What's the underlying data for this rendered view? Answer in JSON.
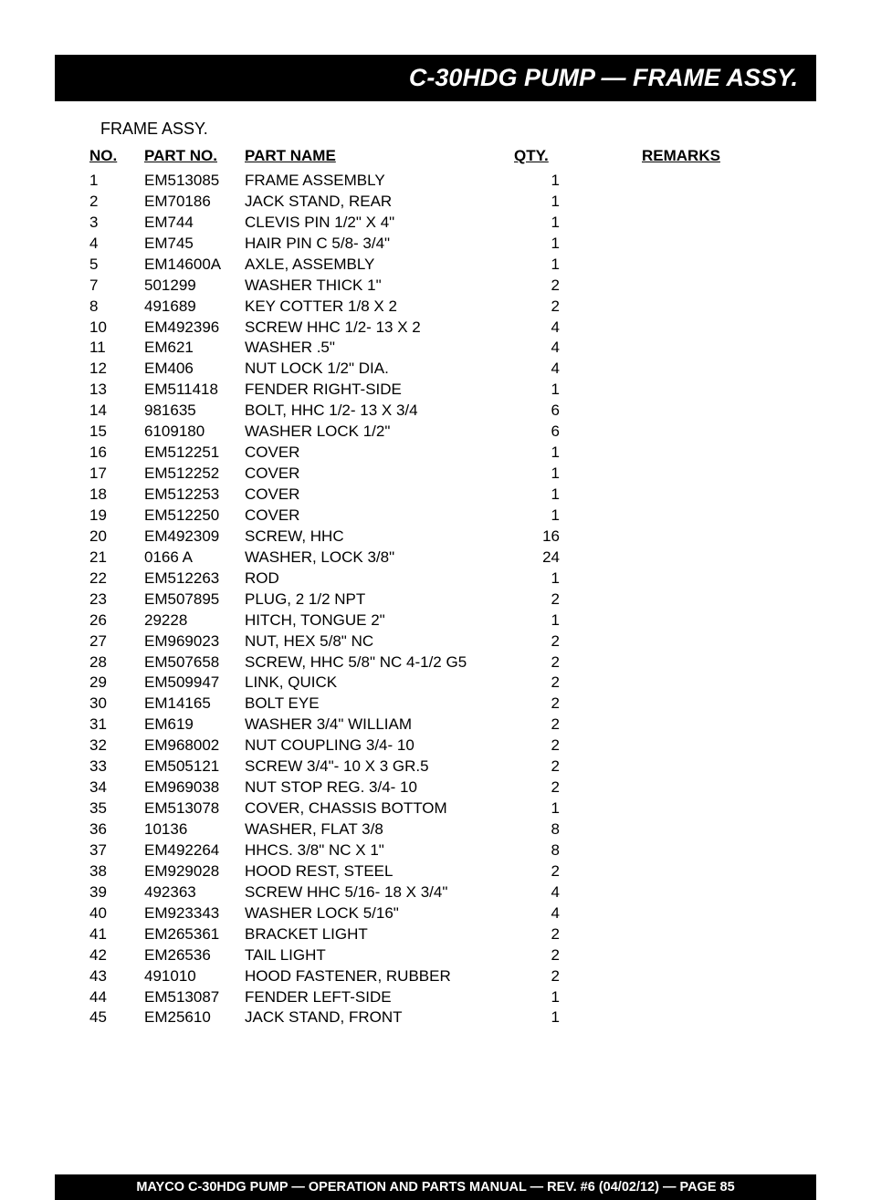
{
  "header": {
    "title": "C-30HDG PUMP — FRAME ASSY."
  },
  "section_label": "FRAME ASSY.",
  "columns": {
    "no": "NO.",
    "partno": "PART NO.",
    "partname": "PART NAME",
    "qty": "QTY.",
    "remarks": "REMARKS"
  },
  "rows": [
    {
      "no": "1",
      "partno": "EM513085",
      "partname": "FRAME ASSEMBLY",
      "qty": "1",
      "remarks": ""
    },
    {
      "no": "2",
      "partno": "EM70186",
      "partname": "JACK STAND, REAR",
      "qty": "1",
      "remarks": ""
    },
    {
      "no": "3",
      "partno": "EM744",
      "partname": "CLEVIS PIN 1/2\" X 4\"",
      "qty": "1",
      "remarks": ""
    },
    {
      "no": "4",
      "partno": "EM745",
      "partname": "HAIR PIN C 5/8- 3/4\"",
      "qty": "1",
      "remarks": ""
    },
    {
      "no": "5",
      "partno": "EM14600A",
      "partname": "AXLE,  ASSEMBLY",
      "qty": "1",
      "remarks": ""
    },
    {
      "no": "7",
      "partno": "501299",
      "partname": "WASHER THICK 1\"",
      "qty": "2",
      "remarks": ""
    },
    {
      "no": "8",
      "partno": "491689",
      "partname": "KEY COTTER 1/8 X 2",
      "qty": "2",
      "remarks": ""
    },
    {
      "no": "10",
      "partno": "EM492396",
      "partname": "SCREW HHC 1/2- 13 X 2",
      "qty": "4",
      "remarks": ""
    },
    {
      "no": "11",
      "partno": "EM621",
      "partname": "WASHER .5\"",
      "qty": "4",
      "remarks": ""
    },
    {
      "no": "12",
      "partno": "EM406",
      "partname": "NUT LOCK 1/2\" DIA.",
      "qty": "4",
      "remarks": ""
    },
    {
      "no": "13",
      "partno": "EM511418",
      "partname": "FENDER RIGHT-SIDE",
      "qty": "1",
      "remarks": ""
    },
    {
      "no": "14",
      "partno": "981635",
      "partname": "BOLT, HHC 1/2- 13 X 3/4",
      "qty": "6",
      "remarks": ""
    },
    {
      "no": "15",
      "partno": "6109180",
      "partname": "WASHER LOCK 1/2\"",
      "qty": "6",
      "remarks": ""
    },
    {
      "no": "16",
      "partno": "EM512251",
      "partname": "COVER",
      "qty": "1",
      "remarks": ""
    },
    {
      "no": "17",
      "partno": "EM512252",
      "partname": "COVER",
      "qty": "1",
      "remarks": ""
    },
    {
      "no": "18",
      "partno": "EM512253",
      "partname": "COVER",
      "qty": "1",
      "remarks": ""
    },
    {
      "no": "19",
      "partno": "EM512250",
      "partname": "COVER",
      "qty": "1",
      "remarks": ""
    },
    {
      "no": "20",
      "partno": "EM492309",
      "partname": "SCREW, HHC",
      "qty": "16",
      "remarks": ""
    },
    {
      "no": "21",
      "partno": "0166 A",
      "partname": "WASHER, LOCK 3/8\"",
      "qty": "24",
      "remarks": ""
    },
    {
      "no": "22",
      "partno": "EM512263",
      "partname": "ROD",
      "qty": "1",
      "remarks": ""
    },
    {
      "no": "23",
      "partno": "EM507895",
      "partname": "PLUG, 2 1/2 NPT",
      "qty": "2",
      "remarks": ""
    },
    {
      "no": "26",
      "partno": "29228",
      "partname": "HITCH, TONGUE 2\"",
      "qty": "1",
      "remarks": ""
    },
    {
      "no": "27",
      "partno": "EM969023",
      "partname": "NUT, HEX 5/8\" NC",
      "qty": "2",
      "remarks": ""
    },
    {
      "no": "28",
      "partno": "EM507658",
      "partname": "SCREW, HHC 5/8\" NC 4-1/2 G5",
      "qty": "2",
      "remarks": ""
    },
    {
      "no": "29",
      "partno": "EM509947",
      "partname": "LINK, QUICK",
      "qty": "2",
      "remarks": ""
    },
    {
      "no": "30",
      "partno": "EM14165",
      "partname": "BOLT EYE",
      "qty": "2",
      "remarks": ""
    },
    {
      "no": "31",
      "partno": "EM619",
      "partname": "WASHER 3/4\" WILLIAM",
      "qty": "2",
      "remarks": ""
    },
    {
      "no": "32",
      "partno": "EM968002",
      "partname": "NUT COUPLING 3/4- 10",
      "qty": "2",
      "remarks": ""
    },
    {
      "no": "33",
      "partno": "EM505121",
      "partname": "SCREW 3/4\"- 10 X 3 GR.5",
      "qty": "2",
      "remarks": ""
    },
    {
      "no": "34",
      "partno": "EM969038",
      "partname": "NUT STOP REG. 3/4- 10",
      "qty": "2",
      "remarks": ""
    },
    {
      "no": "35",
      "partno": "EM513078",
      "partname": "COVER, CHASSIS BOTTOM",
      "qty": "1",
      "remarks": ""
    },
    {
      "no": "36",
      "partno": "10136",
      "partname": "WASHER, FLAT 3/8",
      "qty": "8",
      "remarks": ""
    },
    {
      "no": "37",
      "partno": "EM492264",
      "partname": "HHCS. 3/8\"  NC X 1\"",
      "qty": "8",
      "remarks": ""
    },
    {
      "no": "38",
      "partno": "EM929028",
      "partname": "HOOD REST, STEEL",
      "qty": "2",
      "remarks": ""
    },
    {
      "no": "39",
      "partno": "492363",
      "partname": "SCREW HHC 5/16- 18 X 3/4\"",
      "qty": "4",
      "remarks": ""
    },
    {
      "no": "40",
      "partno": "EM923343",
      "partname": "WASHER LOCK 5/16\"",
      "qty": "4",
      "remarks": ""
    },
    {
      "no": "41",
      "partno": "EM265361",
      "partname": "BRACKET LIGHT",
      "qty": "2",
      "remarks": ""
    },
    {
      "no": "42",
      "partno": "EM26536",
      "partname": "TAIL LIGHT",
      "qty": "2",
      "remarks": ""
    },
    {
      "no": "43",
      "partno": "491010",
      "partname": "HOOD FASTENER, RUBBER",
      "qty": "2",
      "remarks": ""
    },
    {
      "no": "44",
      "partno": "EM513087",
      "partname": "FENDER LEFT-SIDE",
      "qty": "1",
      "remarks": ""
    },
    {
      "no": "45",
      "partno": "EM25610",
      "partname": "JACK STAND, FRONT",
      "qty": "1",
      "remarks": ""
    }
  ],
  "footer": {
    "text": "MAYCO C-30HDG PUMP — OPERATION AND PARTS MANUAL — REV. #6 (04/02/12) — PAGE 85"
  },
  "styling": {
    "header_bg": "#000000",
    "header_fg": "#ffffff",
    "body_bg": "#ffffff",
    "body_fg": "#000000",
    "header_fontsize": 27,
    "body_fontsize": 17,
    "section_fontsize": 18,
    "footer_fontsize": 14.5,
    "row_line_height": 1.35
  }
}
